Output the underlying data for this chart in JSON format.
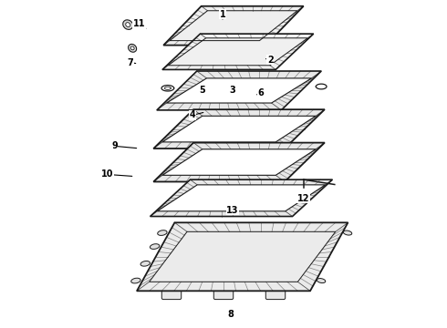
{
  "background_color": "#ffffff",
  "line_color": "#1a1a1a",
  "parts_labels": [
    [
      1,
      0.498,
      0.96,
      0.498,
      0.945
    ],
    [
      2,
      0.605,
      0.82,
      0.59,
      0.825
    ],
    [
      3,
      0.52,
      0.728,
      0.52,
      0.718
    ],
    [
      4,
      0.43,
      0.65,
      0.46,
      0.66
    ],
    [
      5,
      0.453,
      0.728,
      0.455,
      0.718
    ],
    [
      6,
      0.583,
      0.718,
      0.57,
      0.71
    ],
    [
      7,
      0.29,
      0.812,
      0.308,
      0.808
    ],
    [
      8,
      0.517,
      0.038,
      0.517,
      0.055
    ],
    [
      9,
      0.255,
      0.555,
      0.31,
      0.548
    ],
    [
      10,
      0.238,
      0.468,
      0.3,
      0.462
    ],
    [
      11,
      0.31,
      0.93,
      0.33,
      0.912
    ],
    [
      12,
      0.68,
      0.395,
      0.66,
      0.388
    ],
    [
      13,
      0.52,
      0.358,
      0.51,
      0.37
    ]
  ]
}
